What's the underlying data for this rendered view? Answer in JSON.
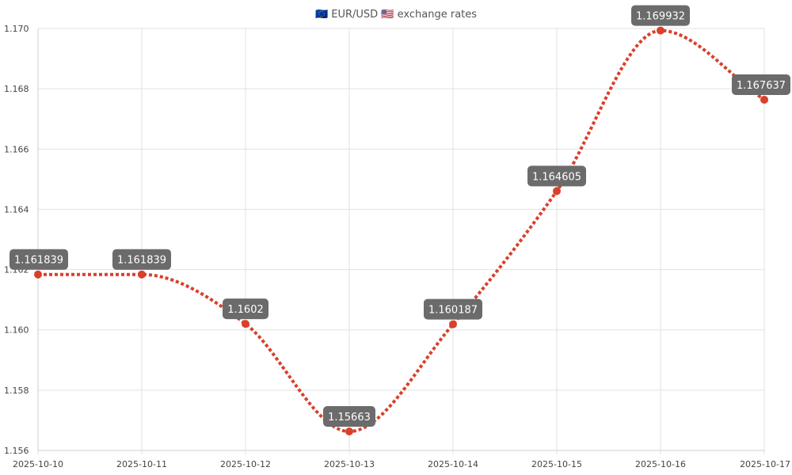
{
  "chart_data": {
    "type": "line",
    "title": "🇪🇺 EUR/USD 🇺🇸 exchange rates",
    "xlabel": "",
    "ylabel": "",
    "x": [
      "2025-10-10",
      "2025-10-11",
      "2025-10-12",
      "2025-10-13",
      "2025-10-14",
      "2025-10-15",
      "2025-10-16",
      "2025-10-17"
    ],
    "series": [
      {
        "values": [
          1.161839,
          1.161839,
          1.1602,
          1.15663,
          1.160187,
          1.164605,
          1.169932,
          1.167637
        ],
        "data_labels": [
          "1.161839",
          "1.161839",
          "1.1602",
          "1.15663",
          "1.160187",
          "1.164605",
          "1.169932",
          "1.167637"
        ]
      }
    ],
    "ylim": [
      1.156,
      1.17
    ],
    "y_ticks": [
      "1.156",
      "1.158",
      "1.160",
      "1.162",
      "1.164",
      "1.166",
      "1.168",
      "1.170"
    ],
    "grid": true,
    "legend": "none",
    "colors": {
      "line": "#d9402b",
      "point": "#d9402b",
      "label_bg": "#6b6b6b",
      "label_text": "#ffffff"
    }
  }
}
